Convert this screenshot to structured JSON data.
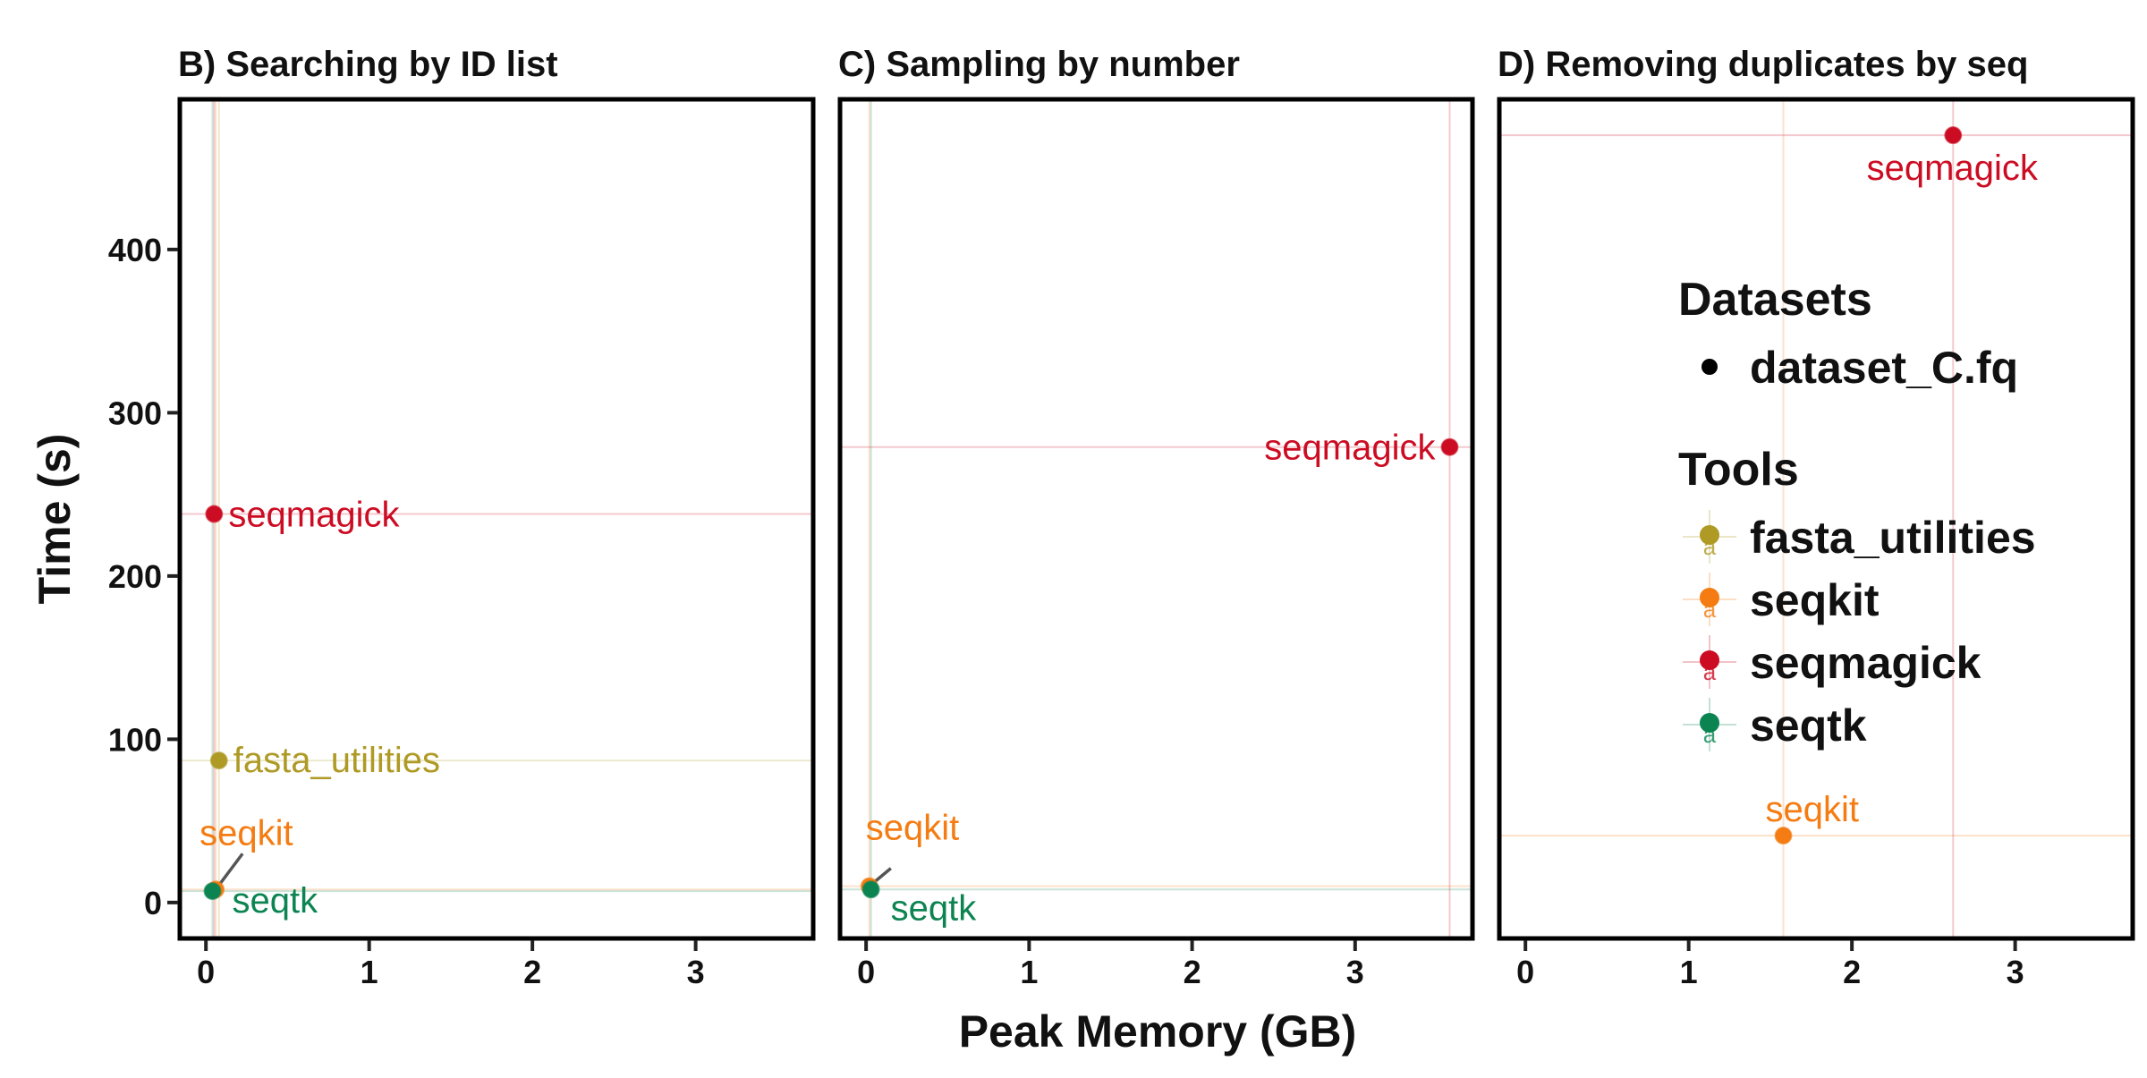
{
  "chart_data": {
    "type": "scatter",
    "xlabel": "Peak Memory (GB)",
    "ylabel": "Time (s)",
    "xlim": [
      -0.16,
      3.72
    ],
    "ylim": [
      -22,
      492
    ],
    "x_ticks": [
      "0",
      "1",
      "2",
      "3"
    ],
    "y_ticks": [
      "0",
      "100",
      "200",
      "300",
      "400"
    ],
    "panels": [
      {
        "title": "B) Searching by ID list",
        "points": [
          {
            "tool": "fasta_utilities",
            "x": 0.08,
            "y": 87,
            "label": "fasta_utilities"
          },
          {
            "tool": "seqkit",
            "x": 0.06,
            "y": 8,
            "label": "seqkit"
          },
          {
            "tool": "seqmagick",
            "x": 0.05,
            "y": 238,
            "label": "seqmagick"
          },
          {
            "tool": "seqtk",
            "x": 0.04,
            "y": 7,
            "label": "seqtk"
          }
        ]
      },
      {
        "title": "C) Sampling by number",
        "points": [
          {
            "tool": "seqkit",
            "x": 0.02,
            "y": 10,
            "label": "seqkit"
          },
          {
            "tool": "seqmagick",
            "x": 3.58,
            "y": 279,
            "label": "seqmagick"
          },
          {
            "tool": "seqtk",
            "x": 0.03,
            "y": 8,
            "label": "seqtk"
          }
        ]
      },
      {
        "title": "D) Removing duplicates by seq",
        "points": [
          {
            "tool": "seqkit",
            "x": 1.58,
            "y": 41,
            "label": "seqkit"
          },
          {
            "tool": "seqmagick",
            "x": 2.62,
            "y": 470,
            "label": "seqmagick"
          }
        ]
      }
    ],
    "legend": {
      "datasets_title": "Datasets",
      "datasets": [
        "dataset_C.fq"
      ],
      "tools_title": "Tools",
      "tools": [
        "fasta_utilities",
        "seqkit",
        "seqmagick",
        "seqtk"
      ],
      "placement": "inside right panel, center"
    },
    "colors": {
      "fasta_utilities": "#ae9a25",
      "seqkit": "#f47c12",
      "seqmagick": "#cc0c23",
      "seqtk": "#0c8452"
    }
  }
}
